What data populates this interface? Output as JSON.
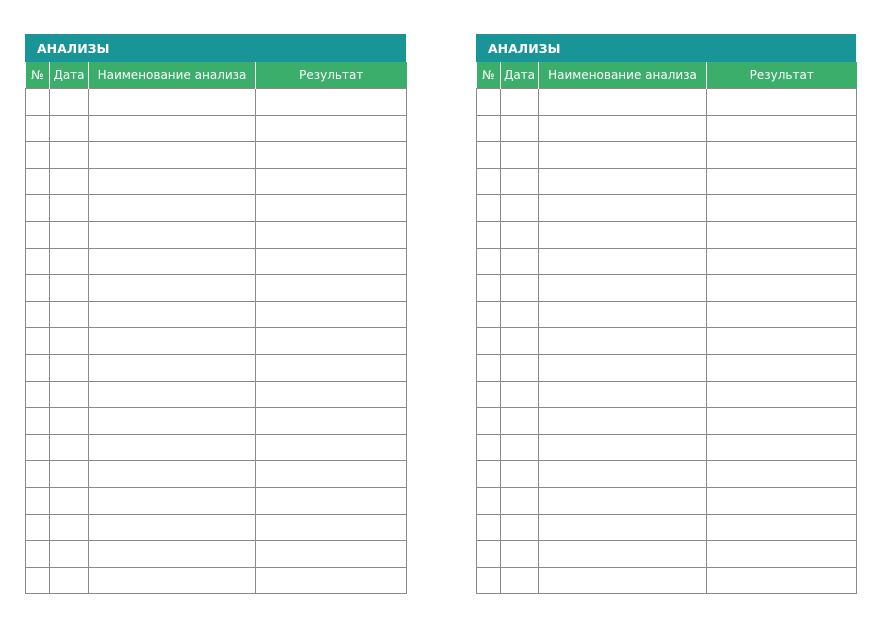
{
  "colors": {
    "title_bg": "#1a9597",
    "header_bg": "#3aae6a",
    "grid": "#8a8a8a"
  },
  "row_count": 19,
  "sheets": [
    {
      "title": "АНАЛИЗЫ",
      "columns": [
        "№",
        "Дата",
        "Наименование анализа",
        "Результат"
      ]
    },
    {
      "title": "АНАЛИЗЫ",
      "columns": [
        "№",
        "Дата",
        "Наименование анализа",
        "Результат"
      ]
    }
  ]
}
